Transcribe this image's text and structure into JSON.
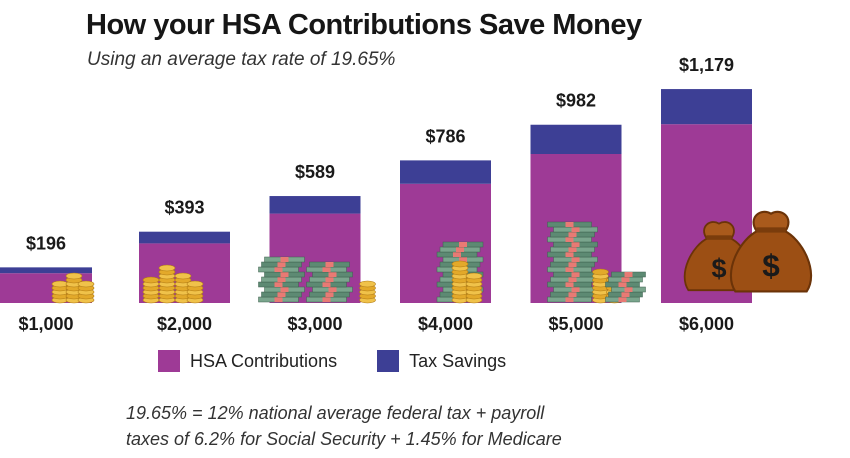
{
  "header": {
    "title": "How your HSA Contributions Save Money",
    "subtitle": "Using an average tax rate of 19.65%"
  },
  "chart_data": {
    "type": "bar",
    "stacked": true,
    "categories": [
      "$1,000",
      "$2,000",
      "$3,000",
      "$4,000",
      "$5,000",
      "$6,000"
    ],
    "series": [
      {
        "name": "HSA Contributions",
        "values": [
          1000,
          2000,
          3000,
          4000,
          5000,
          6000
        ],
        "color": "#9e3a96"
      },
      {
        "name": "Tax Savings",
        "values": [
          196,
          393,
          589,
          786,
          982,
          1179
        ],
        "color": "#3d3f95"
      }
    ],
    "data_labels": [
      "$196",
      "$393",
      "$589",
      "$786",
      "$982",
      "$1,179"
    ],
    "legend_position": "bottom",
    "grid": false,
    "decorations": [
      "coin-stack-icon",
      "cash-bundle-icon",
      "money-bag-icon"
    ]
  },
  "legend": {
    "items": [
      {
        "label": "HSA Contributions",
        "color": "#9e3a96"
      },
      {
        "label": "Tax Savings",
        "color": "#3d3f95"
      }
    ]
  },
  "footnote": {
    "line1": "19.65% = 12% national average federal tax + payroll",
    "line2": "taxes of 6.2% for Social Security + 1.45% for Medicare"
  }
}
